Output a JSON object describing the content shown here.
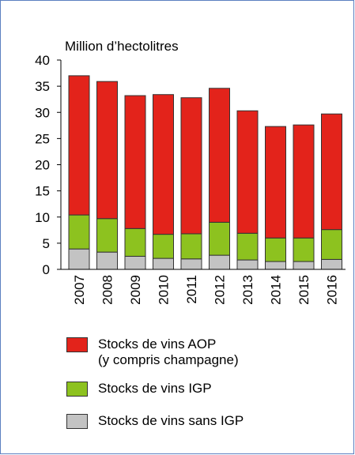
{
  "chart_data": {
    "type": "stacked-bar",
    "title": "Million d’hectolitres",
    "categories": [
      "2007",
      "2008",
      "2009",
      "2010",
      "2011",
      "2012",
      "2013",
      "2014",
      "2015",
      "2016"
    ],
    "series": [
      {
        "name": "Stocks de vins sans IGP",
        "color": "#c3c3c3",
        "values": [
          3.9,
          3.3,
          2.5,
          2.1,
          2.0,
          2.7,
          1.8,
          1.5,
          1.5,
          1.9
        ]
      },
      {
        "name": "Stocks de vins IGP",
        "color": "#8dc21f",
        "values": [
          6.5,
          6.4,
          5.3,
          4.6,
          4.8,
          6.3,
          5.1,
          4.5,
          4.5,
          5.7
        ]
      },
      {
        "name": "Stocks de vins AOP\n(y compris champagne)",
        "color": "#e3231b",
        "values": [
          26.6,
          26.2,
          25.4,
          26.7,
          26.0,
          25.6,
          23.4,
          21.3,
          21.6,
          22.1
        ]
      }
    ],
    "ylim": [
      0,
      40
    ],
    "yticks": [
      0,
      5,
      10,
      15,
      20,
      25,
      30,
      35,
      40
    ]
  }
}
